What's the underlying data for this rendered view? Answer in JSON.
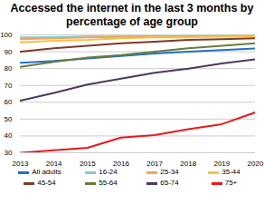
{
  "chart_data": {
    "type": "line",
    "title": "Accessed the internet in the last 3 months by percentage of age group",
    "x": [
      2013,
      2014,
      2015,
      2016,
      2017,
      2018,
      2019,
      2020
    ],
    "xlim": [
      2013,
      2020
    ],
    "xticks": [
      2013,
      2014,
      2015,
      2016,
      2017,
      2018,
      2019,
      2020
    ],
    "ylim": [
      30,
      100
    ],
    "yticks": [
      30,
      40,
      50,
      60,
      70,
      80,
      90,
      100
    ],
    "grid": true,
    "legend": "bottom",
    "series": [
      {
        "name": "All adults",
        "color": "#1f6fcf",
        "values": [
          83.5,
          84.5,
          86,
          87.5,
          89,
          90,
          91,
          92
        ]
      },
      {
        "name": "16-24",
        "color": "#7fcbd8",
        "values": [
          98.5,
          98.7,
          99,
          99,
          99.2,
          99.3,
          99.5,
          99.5
        ]
      },
      {
        "name": "25-34",
        "color": "#f4a261",
        "values": [
          97.5,
          98,
          98.5,
          98.8,
          99,
          99.2,
          99.3,
          99.5
        ]
      },
      {
        "name": "35-44",
        "color": "#f5c342",
        "values": [
          95.5,
          96.5,
          97,
          98,
          98.5,
          98.5,
          99,
          99
        ]
      },
      {
        "name": "45-54",
        "color": "#7b3b2b",
        "values": [
          90,
          92,
          93.5,
          95,
          96,
          97,
          97.5,
          98
        ]
      },
      {
        "name": "55-64",
        "color": "#6b7c3a",
        "values": [
          81,
          84,
          86.5,
          88,
          90,
          92,
          93.5,
          95
        ]
      },
      {
        "name": "65-74",
        "color": "#4b3a5e",
        "values": [
          61,
          65.5,
          70.5,
          74,
          77.5,
          80,
          83,
          85.5
        ]
      },
      {
        "name": "75+",
        "color": "#e31a1c",
        "values": [
          30,
          31.5,
          33,
          39,
          40.5,
          44,
          47,
          54
        ]
      }
    ]
  }
}
